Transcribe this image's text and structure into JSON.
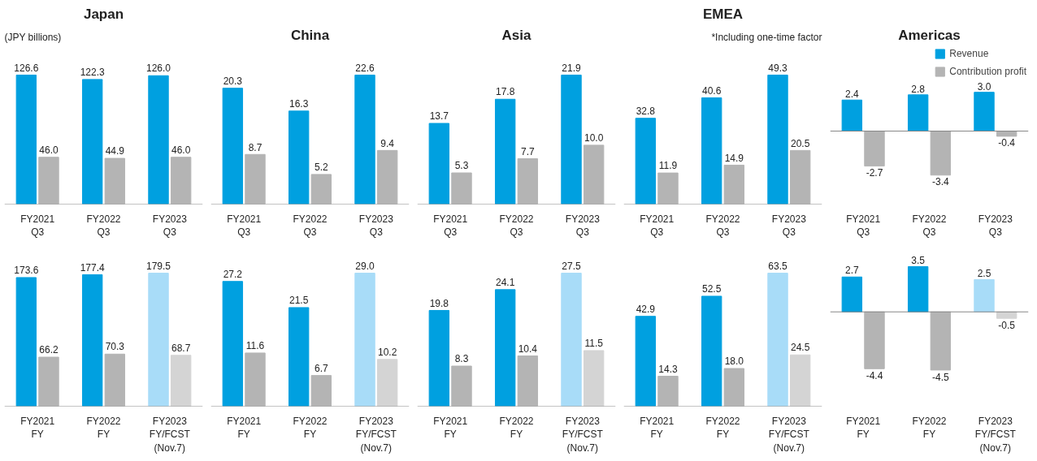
{
  "chart_data": [
    {
      "type": "bar",
      "title": "Japan",
      "annotations": [
        "(JPY billions)"
      ],
      "categories": [
        "FY2021\nQ3",
        "FY2022\nQ3",
        "FY2023\nQ3"
      ],
      "series": [
        {
          "color": "#00a0e0",
          "values": [
            126.6,
            122.3,
            126.0
          ],
          "value_labels": [
            "126.6",
            "122.3",
            "126.0"
          ]
        },
        {
          "color": "#b4b4b4",
          "values": [
            46.0,
            44.9,
            46.0
          ],
          "value_labels": [
            "46.0",
            "44.9",
            "46.0"
          ]
        }
      ]
    },
    {
      "type": "bar",
      "title": "China",
      "categories": [
        "FY2021\nQ3",
        "FY2022\nQ3",
        "FY2023\nQ3"
      ],
      "series": [
        {
          "color": "#00a0e0",
          "values": [
            20.3,
            16.3,
            22.6
          ],
          "value_labels": [
            "20.3",
            "16.3",
            "22.6"
          ]
        },
        {
          "color": "#b4b4b4",
          "values": [
            8.7,
            5.2,
            9.4
          ],
          "value_labels": [
            "8.7",
            "5.2",
            "9.4"
          ]
        }
      ]
    },
    {
      "type": "bar",
      "title": "Asia",
      "categories": [
        "FY2021\nQ3",
        "FY2022\nQ3",
        "FY2023\nQ3"
      ],
      "series": [
        {
          "color": "#00a0e0",
          "values": [
            13.7,
            17.8,
            21.9
          ],
          "value_labels": [
            "13.7",
            "17.8",
            "21.9"
          ]
        },
        {
          "color": "#b4b4b4",
          "values": [
            5.3,
            7.7,
            10.0
          ],
          "value_labels": [
            "5.3",
            "7.7",
            "10.0"
          ]
        }
      ]
    },
    {
      "type": "bar",
      "title": "EMEA",
      "annotations": [
        "*Including one-time factor"
      ],
      "categories": [
        "FY2021\nQ3",
        "FY2022\nQ3",
        "FY2023\nQ3"
      ],
      "series": [
        {
          "color": "#00a0e0",
          "values": [
            32.8,
            40.6,
            49.3
          ],
          "value_labels": [
            "32.8",
            "40.6",
            "49.3"
          ]
        },
        {
          "color": "#b4b4b4",
          "values": [
            11.9,
            14.9,
            20.5
          ],
          "value_labels": [
            "11.9",
            "14.9",
            "20.5"
          ]
        }
      ]
    },
    {
      "type": "bar",
      "title": "Americas",
      "legend": "top right",
      "categories": [
        "FY2021\nQ3",
        "FY2022\nQ3",
        "FY2023\nQ3"
      ],
      "series": [
        {
          "name": "Revenue",
          "color": "#00a0e0",
          "values": [
            2.4,
            2.8,
            3.0
          ],
          "value_labels": [
            "2.4",
            "2.8",
            "3.0"
          ]
        },
        {
          "name": "Contribution profit",
          "color": "#b4b4b4",
          "values": [
            -2.7,
            -3.4,
            -0.4
          ],
          "value_labels": [
            "-2.7",
            "-3.4",
            "-0.4"
          ]
        }
      ]
    },
    {
      "type": "bar",
      "categories": [
        "FY2021\nFY",
        "FY2022\nFY",
        "FY2023\nFY/FCST\n(Nov.7)"
      ],
      "series": [
        {
          "colors": [
            "#00a0e0",
            "#00a0e0",
            "#a8dcf8"
          ],
          "values": [
            173.6,
            177.4,
            179.5
          ],
          "value_labels": [
            "173.6",
            "177.4",
            "179.5"
          ]
        },
        {
          "colors": [
            "#b4b4b4",
            "#b4b4b4",
            "#d4d4d4"
          ],
          "values": [
            66.2,
            70.3,
            68.7
          ],
          "value_labels": [
            "66.2",
            "70.3",
            "68.7"
          ]
        }
      ]
    },
    {
      "type": "bar",
      "categories": [
        "FY2021\nFY",
        "FY2022\nFY",
        "FY2023\nFY/FCST\n(Nov.7)"
      ],
      "series": [
        {
          "colors": [
            "#00a0e0",
            "#00a0e0",
            "#a8dcf8"
          ],
          "values": [
            27.2,
            21.5,
            29.0
          ],
          "value_labels": [
            "27.2",
            "21.5",
            "29.0"
          ]
        },
        {
          "colors": [
            "#b4b4b4",
            "#b4b4b4",
            "#d4d4d4"
          ],
          "values": [
            11.6,
            6.7,
            10.2
          ],
          "value_labels": [
            "11.6",
            "6.7",
            "10.2"
          ]
        }
      ]
    },
    {
      "type": "bar",
      "categories": [
        "FY2021\nFY",
        "FY2022\nFY",
        "FY2023\nFY/FCST\n(Nov.7)"
      ],
      "series": [
        {
          "colors": [
            "#00a0e0",
            "#00a0e0",
            "#a8dcf8"
          ],
          "values": [
            19.8,
            24.1,
            27.5
          ],
          "value_labels": [
            "19.8",
            "24.1",
            "27.5"
          ]
        },
        {
          "colors": [
            "#b4b4b4",
            "#b4b4b4",
            "#d4d4d4"
          ],
          "values": [
            8.3,
            10.4,
            11.5
          ],
          "value_labels": [
            "8.3",
            "10.4",
            "11.5"
          ]
        }
      ]
    },
    {
      "type": "bar",
      "categories": [
        "FY2021\nFY",
        "FY2022\nFY",
        "FY2023\nFY/FCST\n(Nov.7)"
      ],
      "series": [
        {
          "colors": [
            "#00a0e0",
            "#00a0e0",
            "#a8dcf8"
          ],
          "values": [
            42.9,
            52.5,
            63.5
          ],
          "value_labels": [
            "42.9",
            "52.5",
            "63.5"
          ]
        },
        {
          "colors": [
            "#b4b4b4",
            "#b4b4b4",
            "#d4d4d4"
          ],
          "values": [
            14.3,
            18.0,
            24.5
          ],
          "value_labels": [
            "14.3",
            "18.0",
            "24.5"
          ]
        }
      ]
    },
    {
      "type": "bar",
      "categories": [
        "FY2021\nFY",
        "FY2022\nFY",
        "FY2023\nFY/FCST\n(Nov.7)"
      ],
      "series": [
        {
          "colors": [
            "#00a0e0",
            "#00a0e0",
            "#a8dcf8"
          ],
          "values": [
            2.7,
            3.5,
            2.5
          ],
          "value_labels": [
            "2.7",
            "3.5",
            "2.5"
          ]
        },
        {
          "colors": [
            "#b4b4b4",
            "#b4b4b4",
            "#d4d4d4"
          ],
          "values": [
            -4.4,
            -4.5,
            -0.5
          ],
          "value_labels": [
            "-4.4",
            "-4.5",
            "-0.5"
          ]
        }
      ]
    }
  ]
}
